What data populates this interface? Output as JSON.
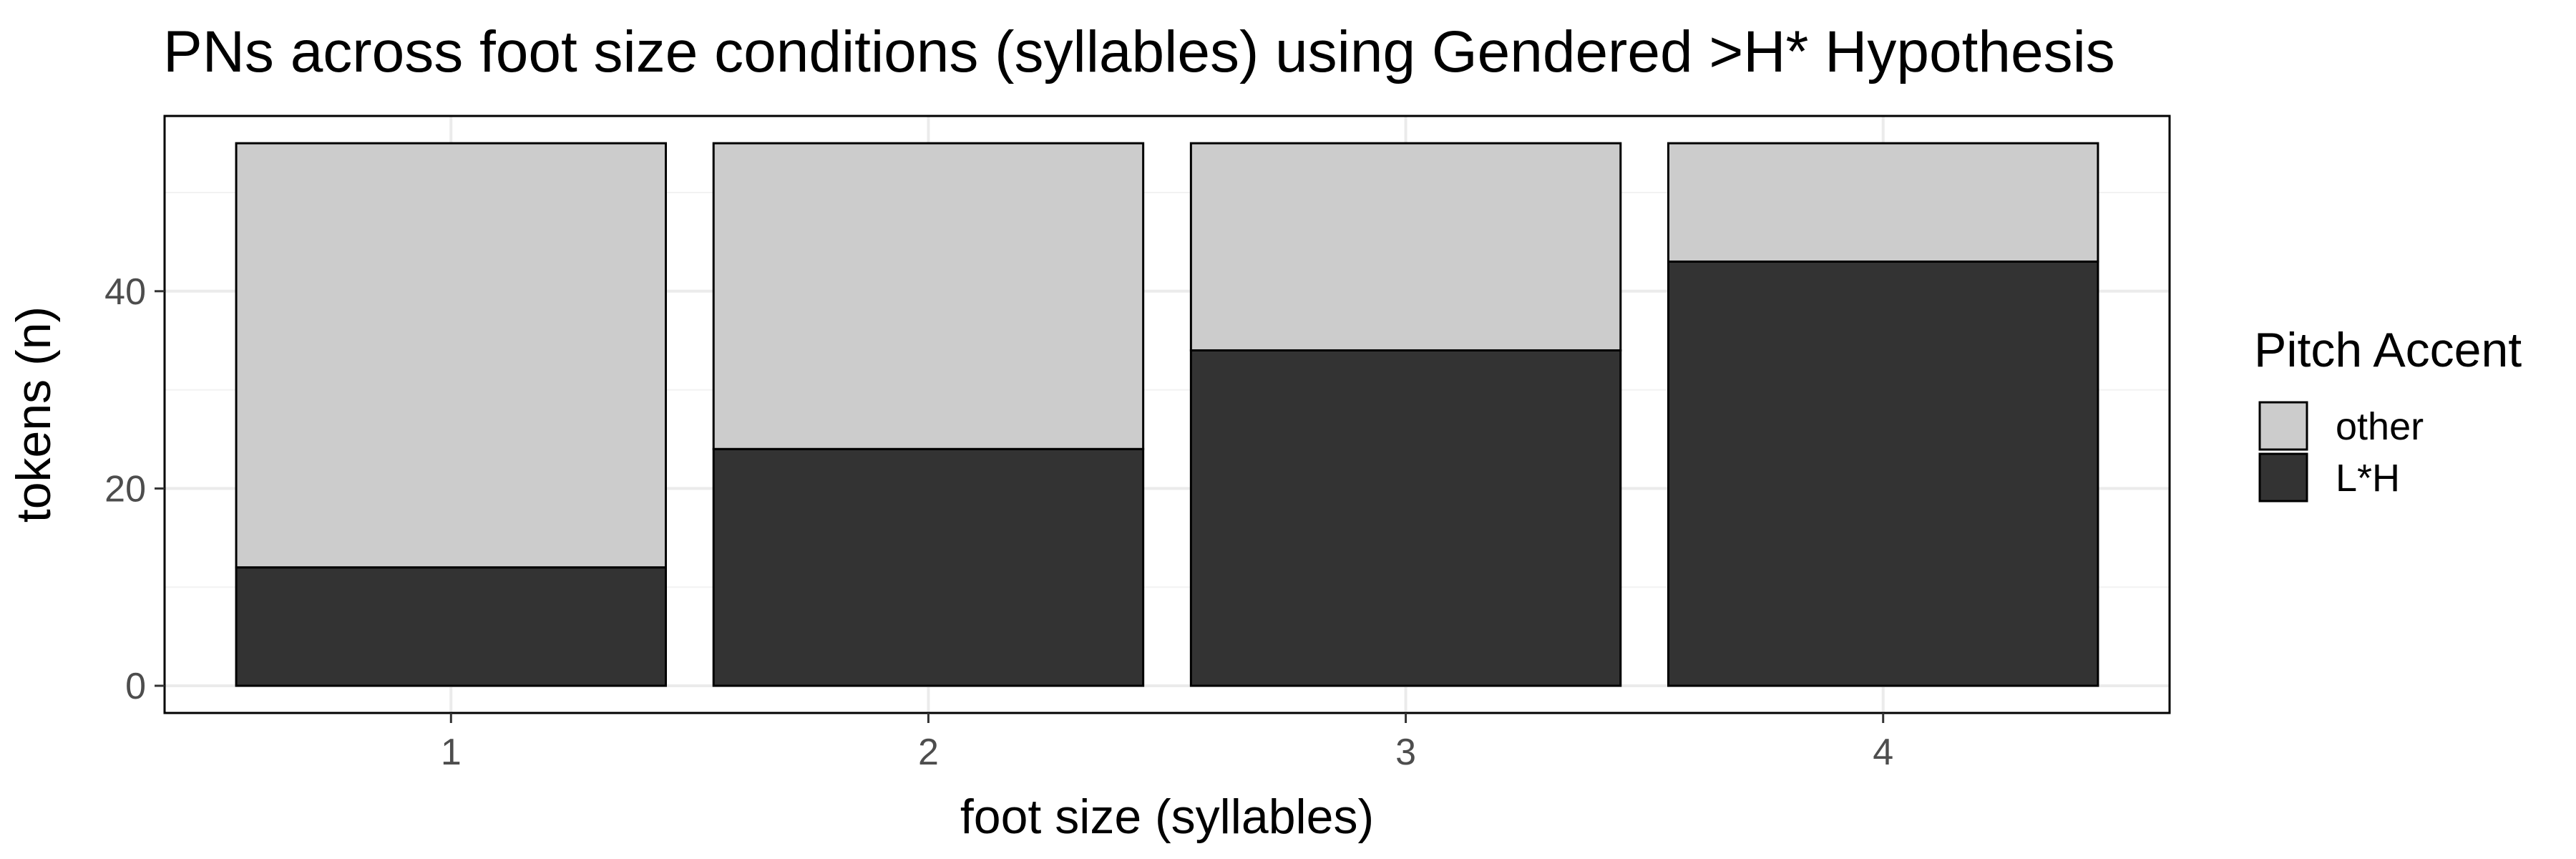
{
  "chart_data": {
    "type": "bar",
    "stacked": true,
    "title": "PNs across foot size conditions (syllables) using Gendered >H* Hypothesis",
    "xlabel": "foot size (syllables)",
    "ylabel": "tokens (n)",
    "categories": [
      "1",
      "2",
      "3",
      "4"
    ],
    "series": [
      {
        "name": "L*H",
        "values": [
          12,
          24,
          34,
          43
        ],
        "color": "#333333"
      },
      {
        "name": "other",
        "values": [
          43,
          31,
          21,
          12
        ],
        "color": "#cccccc"
      }
    ],
    "ylim": [
      0,
      58
    ],
    "yticks": [
      0,
      20,
      40
    ],
    "grid": true,
    "legend": {
      "title": "Pitch Accent",
      "position": "right",
      "items": [
        {
          "name": "other",
          "color": "#cccccc"
        },
        {
          "name": "L*H",
          "color": "#333333"
        }
      ]
    }
  }
}
